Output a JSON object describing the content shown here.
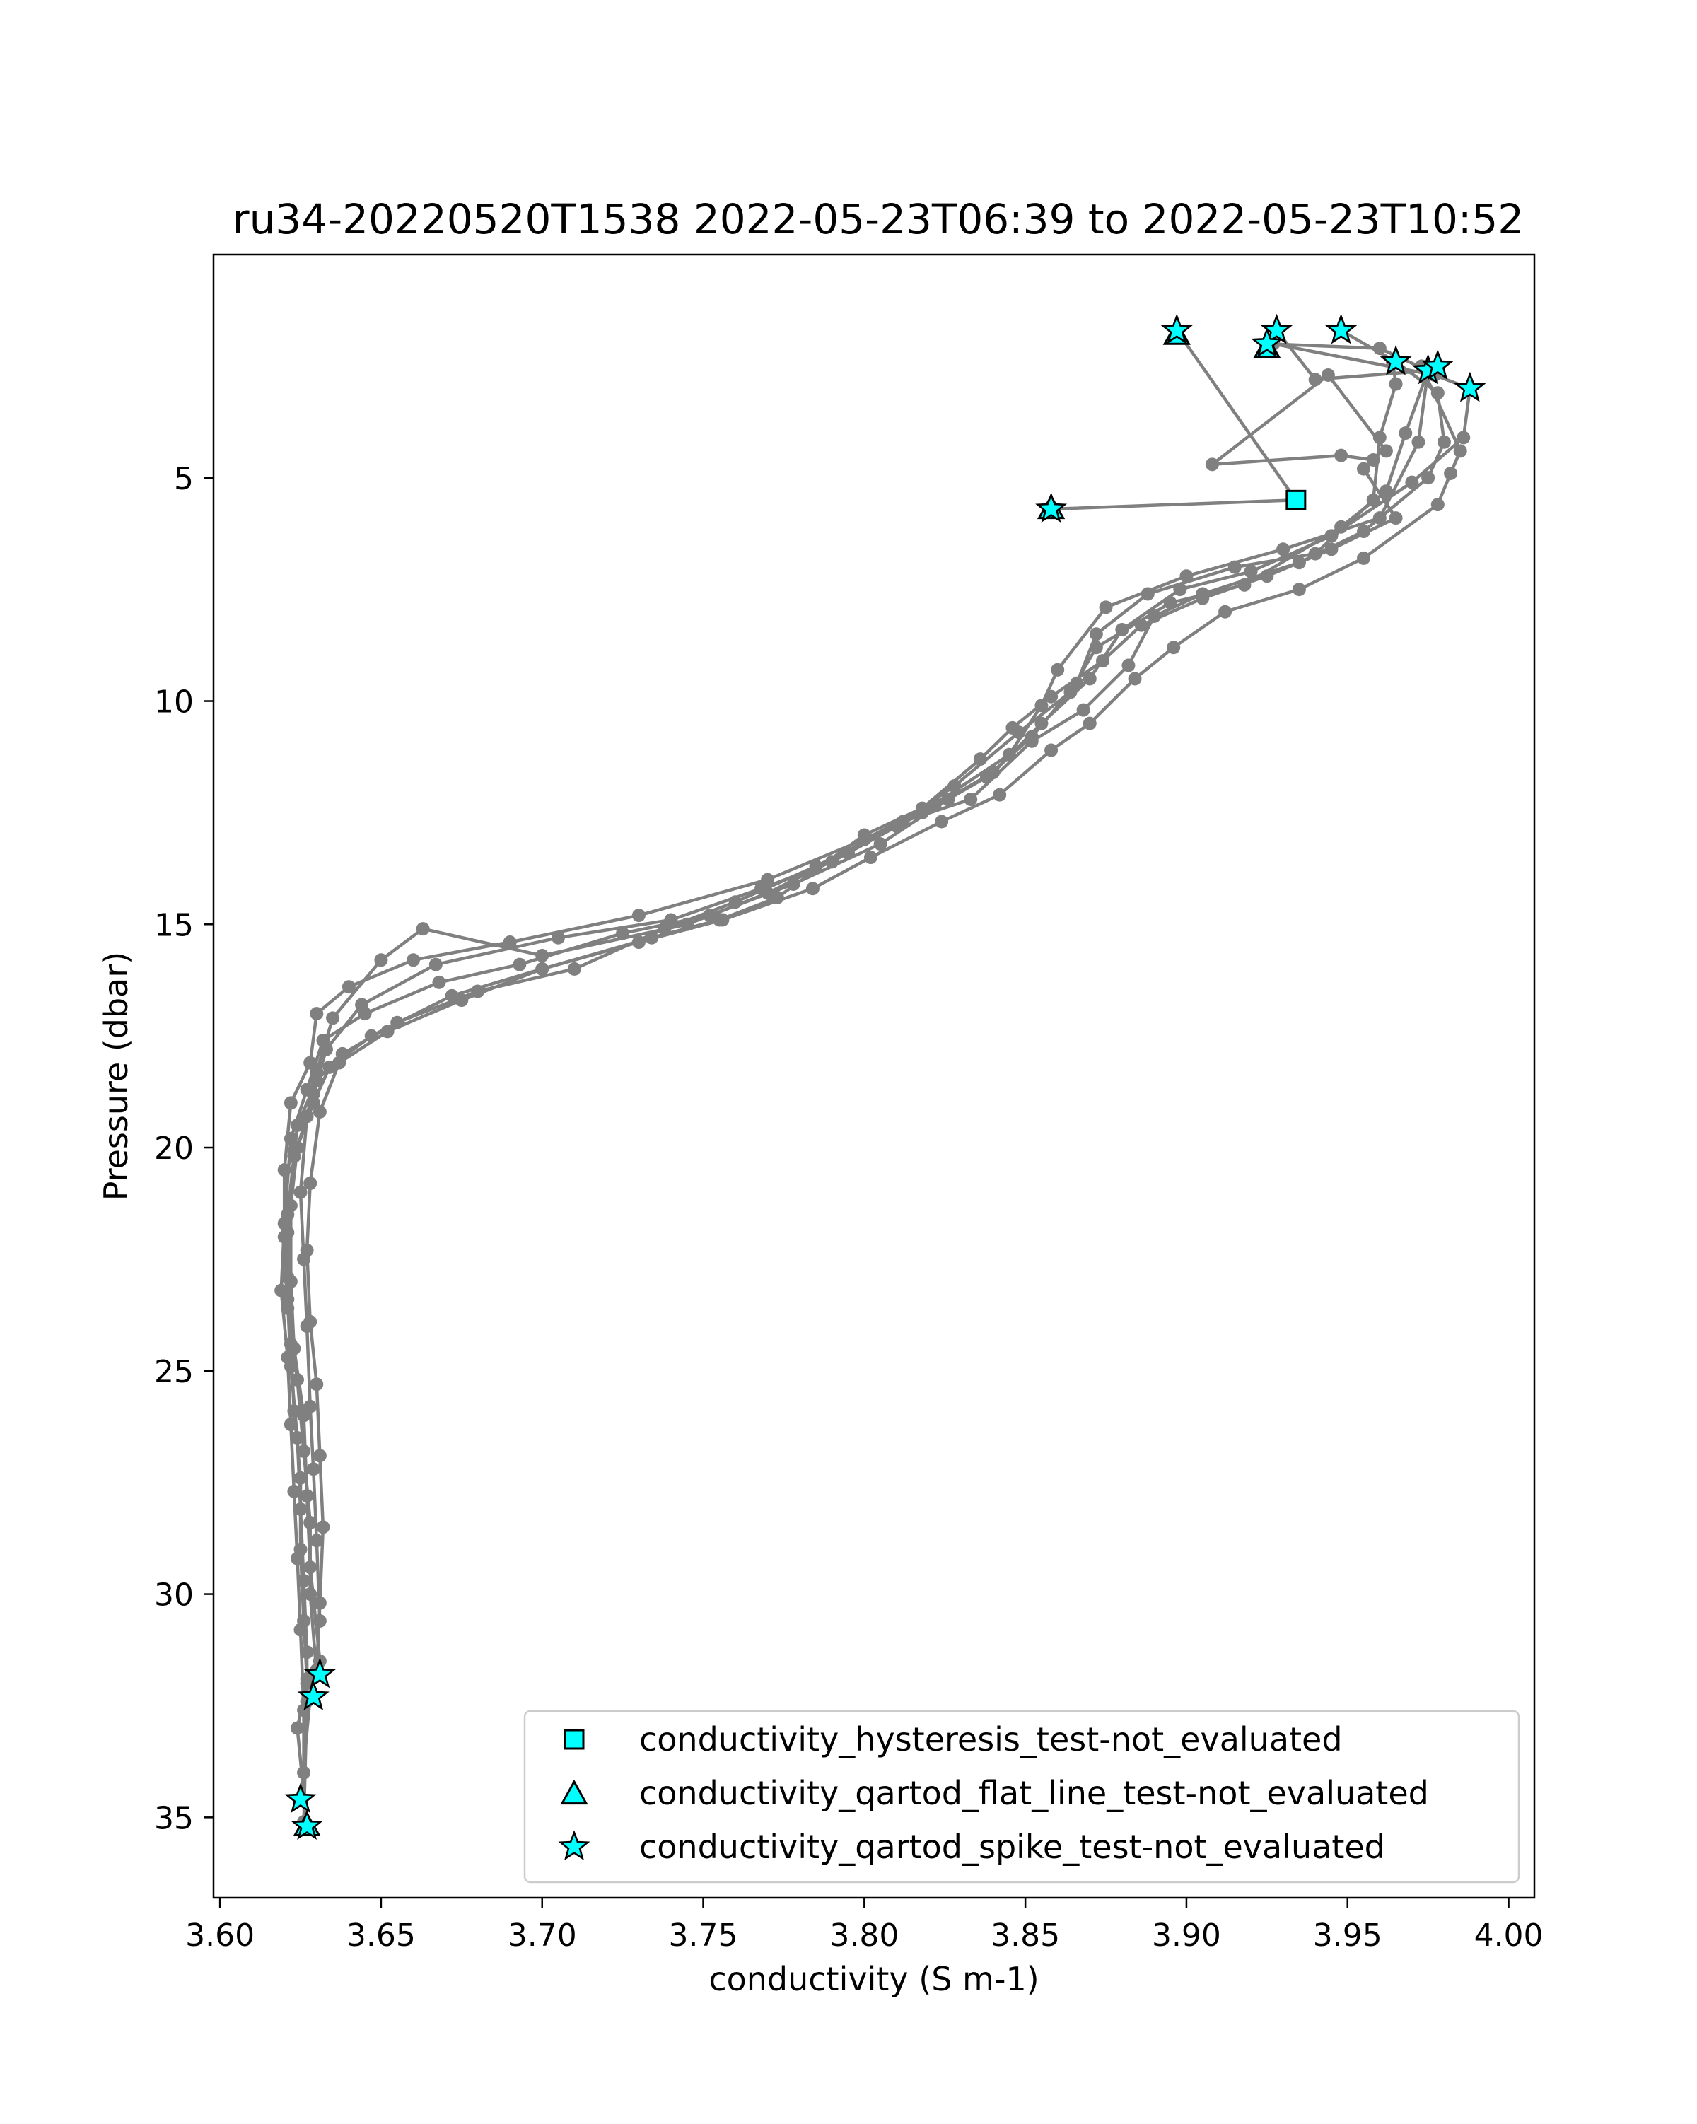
{
  "chart_data": {
    "type": "line",
    "title": "ru34-20220520T1538 2022-05-23T06:39 to 2022-05-23T10:52",
    "xlabel": "conductivity (S m-1)",
    "ylabel": "Pressure (dbar)",
    "xlim": [
      3.598,
      4.008
    ],
    "ylim": [
      36.8,
      0.0
    ],
    "y_inverted": true,
    "grid": false,
    "xticks": [
      3.6,
      3.65,
      3.7,
      3.75,
      3.8,
      3.85,
      3.9,
      3.95,
      4.0
    ],
    "xtick_labels": [
      "3.60",
      "3.65",
      "3.70",
      "3.75",
      "3.80",
      "3.85",
      "3.90",
      "3.95",
      "4.00"
    ],
    "yticks": [
      5,
      10,
      15,
      20,
      25,
      30,
      35
    ],
    "ytick_labels": [
      "5",
      "10",
      "15",
      "20",
      "25",
      "30",
      "35"
    ],
    "line_color": "#808080",
    "marker_color": "#00ffff",
    "legend_position": "lower-right",
    "legend": [
      {
        "label": "conductivity_hysteresis_test-not_evaluated",
        "marker": "square"
      },
      {
        "label": "conductivity_qartod_flat_line_test-not_evaluated",
        "marker": "triangle"
      },
      {
        "label": "conductivity_qartod_spike_test-not_evaluated",
        "marker": "star"
      }
    ],
    "series": [
      {
        "points": [
          [
            3.897,
            1.7
          ],
          [
            3.934,
            5.5
          ],
          [
            3.858,
            5.7
          ]
        ]
      },
      {
        "points": [
          [
            3.928,
            1.7
          ],
          [
            3.94,
            2.8
          ],
          [
            3.975,
            2.6
          ],
          [
            3.972,
            4.2
          ],
          [
            3.96,
            5.9
          ],
          [
            3.93,
            6.6
          ],
          [
            3.9,
            7.2
          ],
          [
            3.875,
            7.9
          ],
          [
            3.86,
            9.3
          ],
          [
            3.855,
            10.1
          ],
          [
            3.845,
            11.2
          ],
          [
            3.822,
            12.3
          ],
          [
            3.8,
            13.1
          ],
          [
            3.77,
            14.0
          ],
          [
            3.73,
            14.8
          ],
          [
            3.69,
            15.4
          ],
          [
            3.66,
            15.8
          ],
          [
            3.64,
            16.4
          ],
          [
            3.63,
            17.0
          ],
          [
            3.628,
            18.1
          ],
          [
            3.622,
            19.0
          ],
          [
            3.62,
            20.5
          ],
          [
            3.62,
            22.0
          ],
          [
            3.621,
            23.6
          ],
          [
            3.624,
            25.2
          ],
          [
            3.626,
            26.8
          ],
          [
            3.628,
            28.4
          ],
          [
            3.628,
            30.0
          ],
          [
            3.63,
            31.8
          ],
          [
            3.628,
            32.3
          ],
          [
            3.625,
            34.6
          ]
        ]
      },
      {
        "points": [
          [
            3.948,
            1.7
          ],
          [
            3.965,
            2.4
          ],
          [
            3.978,
            3.1
          ],
          [
            3.98,
            4.2
          ],
          [
            3.975,
            5.0
          ],
          [
            3.955,
            6.2
          ],
          [
            3.935,
            6.9
          ],
          [
            3.905,
            7.6
          ],
          [
            3.89,
            8.1
          ],
          [
            3.882,
            9.2
          ],
          [
            3.868,
            10.2
          ],
          [
            3.852,
            10.9
          ],
          [
            3.833,
            12.2
          ],
          [
            3.812,
            12.7
          ],
          [
            3.79,
            13.6
          ],
          [
            3.768,
            14.2
          ],
          [
            3.74,
            14.9
          ],
          [
            3.705,
            15.3
          ],
          [
            3.667,
            15.9
          ],
          [
            3.644,
            16.8
          ],
          [
            3.633,
            17.8
          ],
          [
            3.629,
            18.8
          ],
          [
            3.624,
            20.0
          ],
          [
            3.622,
            21.3
          ],
          [
            3.622,
            23.0
          ],
          [
            3.623,
            24.5
          ],
          [
            3.626,
            26.0
          ],
          [
            3.627,
            27.8
          ],
          [
            3.628,
            29.4
          ],
          [
            3.631,
            31.5
          ],
          [
            3.627,
            32.0
          ],
          [
            3.624,
            33.0
          ],
          [
            3.627,
            35.2
          ]
        ]
      },
      {
        "points": [
          [
            3.927,
            2.0
          ],
          [
            3.977,
            2.7
          ],
          [
            3.988,
            3.0
          ],
          [
            3.986,
            4.1
          ],
          [
            3.97,
            5.1
          ],
          [
            3.945,
            6.3
          ],
          [
            3.92,
            7.1
          ],
          [
            3.898,
            7.5
          ],
          [
            3.88,
            8.4
          ],
          [
            3.87,
            9.5
          ],
          [
            3.855,
            10.5
          ],
          [
            3.84,
            11.6
          ],
          [
            3.818,
            12.5
          ],
          [
            3.795,
            13.4
          ],
          [
            3.77,
            14.3
          ],
          [
            3.745,
            15.0
          ],
          [
            3.7,
            15.7
          ],
          [
            3.663,
            15.1
          ],
          [
            3.65,
            15.8
          ],
          [
            3.635,
            17.1
          ],
          [
            3.63,
            18.3
          ],
          [
            3.627,
            19.3
          ],
          [
            3.625,
            21.0
          ],
          [
            3.626,
            22.5
          ],
          [
            3.627,
            24.0
          ],
          [
            3.628,
            25.8
          ],
          [
            3.629,
            27.2
          ],
          [
            3.63,
            28.8
          ],
          [
            3.631,
            30.6
          ]
        ]
      },
      {
        "points": [
          [
            3.925,
            2.0
          ],
          [
            3.96,
            2.1
          ],
          [
            3.975,
            2.6
          ],
          [
            3.968,
            4.0
          ],
          [
            3.962,
            5.3
          ],
          [
            3.948,
            6.1
          ],
          [
            3.918,
            7.4
          ],
          [
            3.895,
            7.8
          ],
          [
            3.872,
            8.8
          ],
          [
            3.864,
            9.8
          ],
          [
            3.848,
            10.7
          ],
          [
            3.828,
            11.9
          ],
          [
            3.81,
            12.8
          ],
          [
            3.785,
            13.7
          ],
          [
            3.76,
            14.5
          ],
          [
            3.738,
            15.1
          ],
          [
            3.71,
            16.0
          ],
          [
            3.68,
            16.5
          ],
          [
            3.655,
            17.2
          ],
          [
            3.638,
            17.9
          ],
          [
            3.63,
            18.5
          ],
          [
            3.624,
            19.5
          ],
          [
            3.621,
            21.5
          ],
          [
            3.621,
            22.9
          ],
          [
            3.622,
            24.4
          ],
          [
            3.623,
            25.9
          ],
          [
            3.625,
            27.4
          ],
          [
            3.625,
            29.0
          ],
          [
            3.626,
            30.6
          ],
          [
            3.627,
            31.9
          ]
        ]
      },
      {
        "points": [
          [
            3.964,
            2.4
          ],
          [
            3.965,
            2.9
          ],
          [
            3.96,
            4.1
          ],
          [
            3.958,
            5.5
          ],
          [
            3.94,
            6.7
          ],
          [
            3.915,
            7.0
          ],
          [
            3.888,
            7.6
          ],
          [
            3.872,
            8.5
          ],
          [
            3.866,
            9.6
          ],
          [
            3.852,
            10.8
          ],
          [
            3.838,
            11.7
          ],
          [
            3.826,
            12.2
          ],
          [
            3.805,
            13.2
          ],
          [
            3.778,
            14.1
          ],
          [
            3.752,
            14.8
          ],
          [
            3.725,
            15.2
          ],
          [
            3.693,
            15.9
          ],
          [
            3.668,
            16.3
          ],
          [
            3.645,
            17.0
          ],
          [
            3.632,
            17.6
          ],
          [
            3.627,
            18.7
          ],
          [
            3.622,
            19.8
          ],
          [
            3.62,
            21.7
          ],
          [
            3.619,
            23.2
          ],
          [
            3.621,
            24.7
          ],
          [
            3.622,
            26.2
          ],
          [
            3.623,
            27.7
          ],
          [
            3.624,
            29.2
          ],
          [
            3.625,
            30.8
          ],
          [
            3.626,
            32.6
          ],
          [
            3.626,
            34.0
          ]
        ]
      },
      {
        "points": [
          [
            3.958,
            4.6
          ],
          [
            3.948,
            4.5
          ],
          [
            3.908,
            4.7
          ],
          [
            3.944,
            2.7
          ],
          [
            3.962,
            4.4
          ]
        ]
      },
      {
        "points": [
          [
            3.973,
            2.5
          ],
          [
            3.985,
            4.4
          ],
          [
            3.982,
            4.9
          ],
          [
            3.978,
            5.6
          ],
          [
            3.955,
            6.8
          ],
          [
            3.935,
            7.5
          ],
          [
            3.912,
            8.0
          ],
          [
            3.896,
            8.8
          ],
          [
            3.884,
            9.5
          ],
          [
            3.87,
            10.5
          ],
          [
            3.858,
            11.1
          ],
          [
            3.842,
            12.1
          ],
          [
            3.824,
            12.7
          ],
          [
            3.802,
            13.5
          ],
          [
            3.784,
            14.2
          ],
          [
            3.756,
            14.9
          ],
          [
            3.73,
            15.4
          ],
          [
            3.7,
            16.0
          ],
          [
            3.675,
            16.7
          ],
          [
            3.652,
            17.4
          ],
          [
            3.637,
            18.1
          ],
          [
            3.631,
            19.2
          ],
          [
            3.628,
            20.8
          ],
          [
            3.627,
            22.3
          ],
          [
            3.628,
            23.9
          ],
          [
            3.63,
            25.3
          ],
          [
            3.631,
            26.9
          ],
          [
            3.632,
            28.5
          ],
          [
            3.631,
            30.2
          ],
          [
            3.63,
            31.7
          ]
        ]
      },
      {
        "points": [
          [
            3.955,
            4.8
          ],
          [
            3.965,
            5.9
          ],
          [
            3.945,
            6.6
          ],
          [
            3.925,
            7.2
          ],
          [
            3.905,
            7.7
          ],
          [
            3.886,
            8.3
          ],
          [
            3.874,
            9.1
          ],
          [
            3.858,
            9.9
          ],
          [
            3.846,
            10.6
          ],
          [
            3.836,
            11.3
          ],
          [
            3.818,
            12.4
          ],
          [
            3.8,
            13.0
          ],
          [
            3.773,
            14.4
          ],
          [
            3.755,
            14.9
          ],
          [
            3.734,
            15.3
          ],
          [
            3.7,
            16.0
          ],
          [
            3.672,
            16.6
          ],
          [
            3.647,
            17.5
          ],
          [
            3.634,
            18.2
          ],
          [
            3.629,
            19.0
          ],
          [
            3.623,
            20.2
          ],
          [
            3.621,
            21.9
          ],
          [
            3.621,
            23.4
          ],
          [
            3.622,
            24.9
          ],
          [
            3.624,
            26.5
          ],
          [
            3.625,
            28.1
          ],
          [
            3.626,
            29.7
          ],
          [
            3.627,
            31.3
          ],
          [
            3.627,
            32.4
          ],
          [
            3.626,
            35.1
          ]
        ]
      }
    ],
    "flag_points": {
      "hysteresis": [
        [
          3.934,
          5.5
        ]
      ],
      "flat_line": [
        [
          3.897,
          1.8
        ],
        [
          3.925,
          2.1
        ],
        [
          3.858,
          5.7
        ],
        [
          3.627,
          35.2
        ]
      ],
      "spike": [
        [
          3.897,
          1.7
        ],
        [
          3.928,
          1.7
        ],
        [
          3.948,
          1.7
        ],
        [
          3.925,
          2.0
        ],
        [
          3.965,
          2.4
        ],
        [
          3.975,
          2.6
        ],
        [
          3.978,
          2.5
        ],
        [
          3.988,
          3.0
        ],
        [
          3.858,
          5.7
        ],
        [
          3.631,
          31.8
        ],
        [
          3.629,
          32.3
        ],
        [
          3.625,
          34.6
        ],
        [
          3.627,
          35.2
        ]
      ]
    }
  }
}
